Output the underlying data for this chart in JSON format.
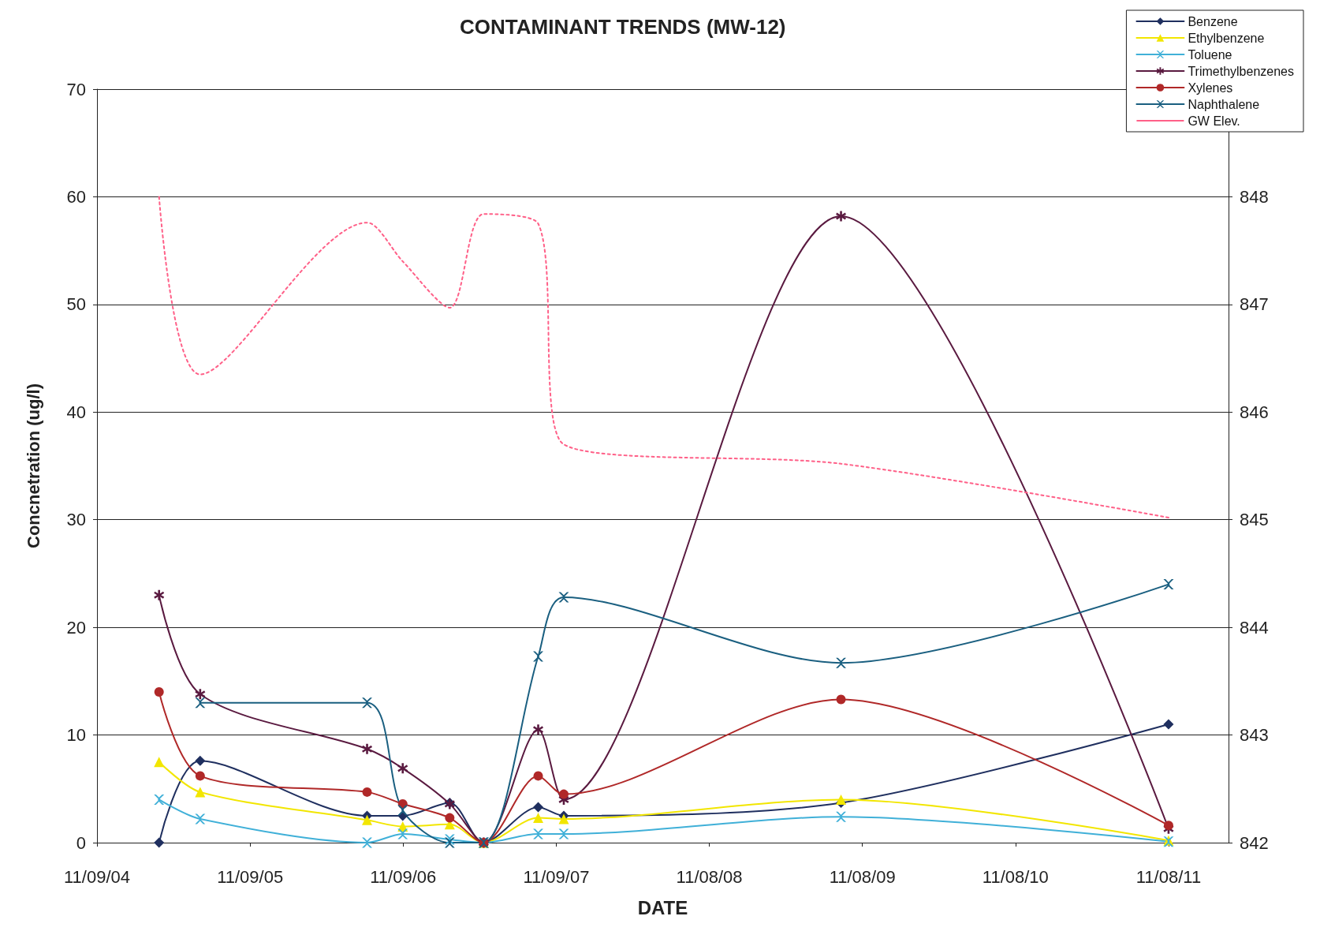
{
  "chart_data": {
    "type": "line",
    "title": "CONTAMINANT TRENDS (MW-12)",
    "xlabel": "DATE",
    "ylabel": "Concnetration (ug/l)",
    "x": [
      "2005-04-06",
      "2005-07-13",
      "2006-08-15",
      "2006-11-08",
      "2007-02-28",
      "2007-05-20",
      "2007-09-27",
      "2007-11-27",
      "2009-09-18",
      "2011-11-08"
    ],
    "series": [
      {
        "name": "Benzene",
        "color": "#1f2f5f",
        "marker": "diamond",
        "values": [
          0,
          7.6,
          2.5,
          2.5,
          3.7,
          0,
          3.3,
          2.5,
          3.7,
          11
        ]
      },
      {
        "name": "Ethylbenzene",
        "color": "#f2e600",
        "marker": "triangle",
        "values": [
          7.5,
          4.7,
          2.1,
          1.5,
          1.7,
          0,
          2.3,
          2.2,
          4.0,
          0.2
        ]
      },
      {
        "name": "Toluene",
        "color": "#40b0d8",
        "marker": "cross",
        "values": [
          4.0,
          2.2,
          0,
          0.8,
          0.3,
          0,
          0.8,
          0.8,
          2.4,
          0.1
        ]
      },
      {
        "name": "Trimethylbenzenes",
        "color": "#5a1a40",
        "marker": "star",
        "values": [
          23,
          13.8,
          8.7,
          6.9,
          3.6,
          0,
          10.5,
          4.0,
          58.2,
          1.3
        ]
      },
      {
        "name": "Xylenes",
        "color": "#b02828",
        "marker": "circle",
        "values": [
          14,
          6.2,
          4.7,
          3.6,
          2.3,
          0,
          6.2,
          4.5,
          13.3,
          1.6
        ]
      },
      {
        "name": "Naphthalene",
        "color": "#1a5f80",
        "marker": "cross",
        "values": [
          null,
          13,
          13,
          3,
          0,
          0,
          17.3,
          22.8,
          16.7,
          24
        ]
      },
      {
        "name": "GW Elev.",
        "color": "#ff6088",
        "marker": "none",
        "line_style": "dotted",
        "axis": "y2",
        "values": [
          848.0,
          846.35,
          847.76,
          847.4,
          846.97,
          847.84,
          847.75,
          845.7,
          845.52,
          845.02
        ]
      }
    ],
    "xlim": [
      "2004-11-09",
      "2012-03-30"
    ],
    "xticks": [
      {
        "value": "2004-11-09",
        "label": "11/09/04"
      },
      {
        "value": "2005-11-09",
        "label": "11/09/05"
      },
      {
        "value": "2006-11-09",
        "label": "11/09/06"
      },
      {
        "value": "2007-11-09",
        "label": "11/09/07"
      },
      {
        "value": "2008-11-08",
        "label": "11/08/08"
      },
      {
        "value": "2009-11-08",
        "label": "11/08/09"
      },
      {
        "value": "2010-11-08",
        "label": "11/08/10"
      },
      {
        "value": "2011-11-08",
        "label": "11/08/11"
      }
    ],
    "ylim": [
      0,
      70
    ],
    "yticks": [
      0,
      10,
      20,
      30,
      40,
      50,
      60,
      70
    ],
    "y2lim": [
      842,
      849
    ],
    "y2ticks": [
      842,
      843,
      844,
      845,
      846,
      847,
      848
    ],
    "grid": "y",
    "legend": "top right"
  }
}
